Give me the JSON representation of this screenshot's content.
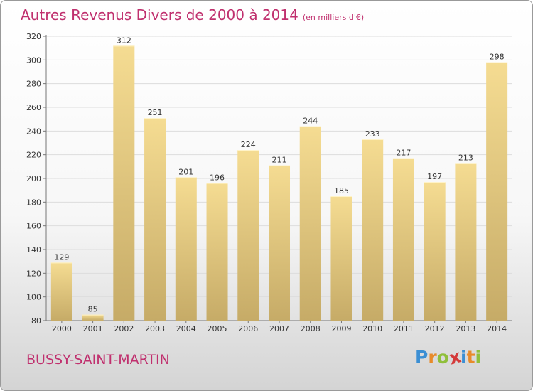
{
  "header": {
    "title": "Autres Revenus Divers de 2000 à 2014",
    "subtitle": "(en milliers d'€)"
  },
  "footer": {
    "city": "BUSSY-SAINT-MARTIN",
    "logo_letters": [
      "P",
      "r",
      "o",
      "x",
      "i",
      "t",
      "i"
    ]
  },
  "colors": {
    "accent": "#c0306e",
    "bar_light": "#f5dc92",
    "bar_dark": "#c6ab67",
    "logo": [
      "#3b8fd4",
      "#e88b2a",
      "#8fbf3a",
      "#d43a3a",
      "#3b8fd4",
      "#e88b2a",
      "#8fbf3a"
    ]
  },
  "chart_data": {
    "type": "bar",
    "title": "Autres Revenus Divers de 2000 à 2014",
    "subtitle": "(en milliers d'€)",
    "categories": [
      "2000",
      "2001",
      "2002",
      "2003",
      "2004",
      "2005",
      "2006",
      "2007",
      "2008",
      "2009",
      "2010",
      "2011",
      "2012",
      "2013",
      "2014"
    ],
    "values": [
      129,
      85,
      312,
      251,
      201,
      196,
      224,
      211,
      244,
      185,
      233,
      217,
      197,
      213,
      298
    ],
    "ylim": [
      80,
      320
    ],
    "yticks": [
      80,
      100,
      120,
      140,
      160,
      180,
      200,
      220,
      240,
      260,
      280,
      300,
      320
    ],
    "grid": true,
    "data_labels": true
  }
}
